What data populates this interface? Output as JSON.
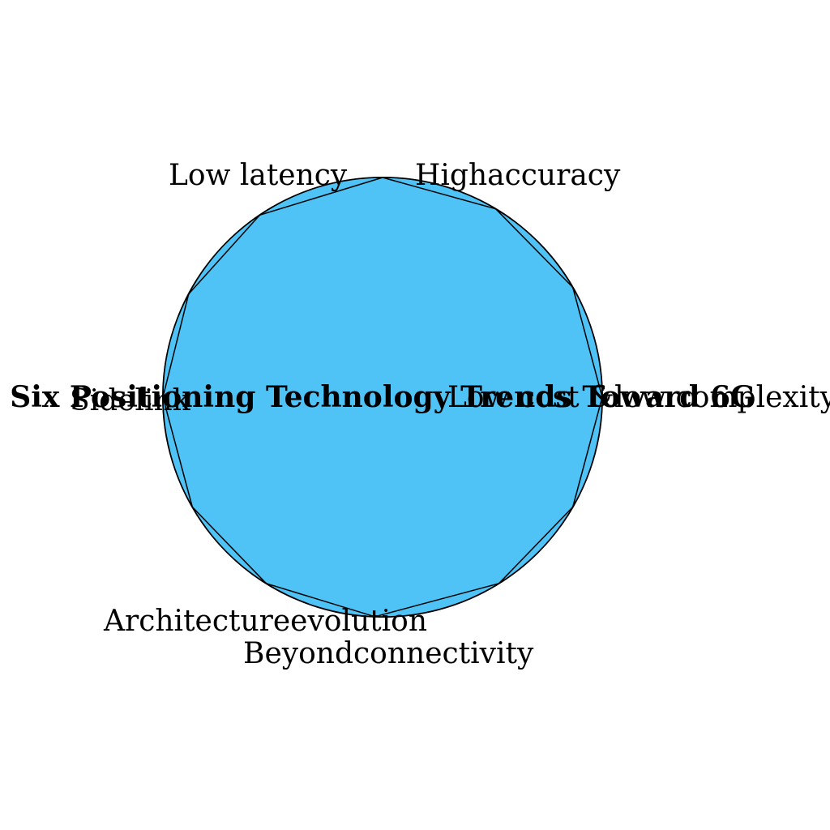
{
  "diagram": {
    "title": "Six Positioning Technology Trends Toward 6G",
    "fill_color": "#4fc3f5",
    "stroke_color": "#000000",
    "trends": [
      "Low latency",
      "Highaccuracy",
      "Low cost &low complexity",
      "Beyondconnectivity",
      "Architectureevolution",
      "Sidelink"
    ]
  }
}
